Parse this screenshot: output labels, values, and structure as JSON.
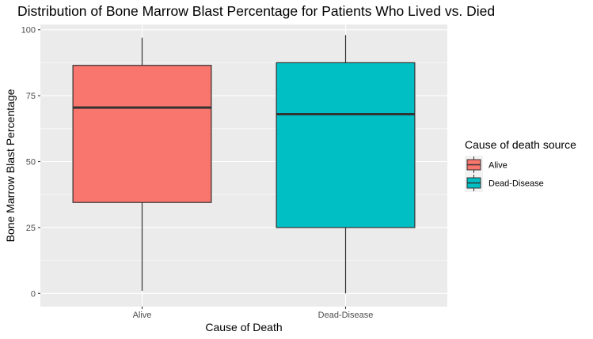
{
  "chart_data": {
    "type": "boxplot",
    "title": "Distribution of Bone Marrow Blast Percentage for Patients Who Lived vs. Died",
    "xlabel": "Cause of Death",
    "ylabel": "Bone Marrow Blast Percentage",
    "categories": [
      "Alive",
      "Dead-Disease"
    ],
    "ylim": [
      -5,
      102
    ],
    "yticks": [
      0,
      25,
      50,
      75,
      100
    ],
    "grid": true,
    "boxes": [
      {
        "category": "Alive",
        "min": 1,
        "q1": 34.5,
        "median": 70.5,
        "q3": 86.5,
        "max": 97,
        "color": "#F8766D"
      },
      {
        "category": "Dead-Disease",
        "min": 0,
        "q1": 25,
        "median": 68,
        "q3": 87.5,
        "max": 98,
        "color": "#00BFC4"
      }
    ],
    "legend": {
      "title": "Cause of death source",
      "position": "right",
      "entries": [
        {
          "label": "Alive",
          "color": "#F8766D"
        },
        {
          "label": "Dead-Disease",
          "color": "#00BFC4"
        }
      ]
    }
  },
  "colors": {
    "panel_background": "#EBEBEB",
    "grid_major": "#FFFFFF",
    "box_stroke": "#333333",
    "tick_text": "#4D4D4D"
  }
}
